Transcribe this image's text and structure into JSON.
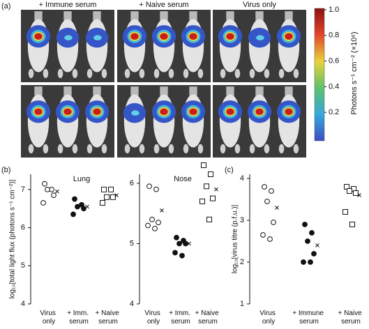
{
  "figure": {
    "panel_labels": [
      "(a)",
      "(b)",
      "(c)"
    ],
    "image_columns": [
      "+ Immune serum",
      "+ Naive serum",
      "Virus only"
    ]
  },
  "chart_data": [
    {
      "type": "colorbar",
      "label": "Photons s⁻¹ cm⁻² (×10⁶)",
      "ylim": [
        0,
        1
      ],
      "yticks": [
        0.2,
        0.4,
        0.6,
        0.8,
        {
          "value": 1,
          "label": "1.0"
        }
      ],
      "colors": [
        "#3b4fc4",
        "#36a8dc",
        "#5ec26b",
        "#e8d33a",
        "#e3462a",
        "#8c1111"
      ]
    },
    {
      "type": "dot",
      "title": "Lung",
      "ylabel": "log₁₀[total light flux (photons s⁻¹ cm⁻²)]",
      "categories": [
        "Virus only",
        "+ Imm. serum",
        "+ Naive serum"
      ],
      "markers": [
        "circle-open",
        "circle-filled",
        "square-open"
      ],
      "values": [
        [
          7.15,
          7.0,
          7.0,
          6.85,
          6.65
        ],
        [
          6.75,
          6.6,
          6.55,
          6.5,
          6.35
        ],
        [
          7.0,
          7.0,
          6.8,
          6.8,
          6.65
        ]
      ],
      "means": [
        6.95,
        6.55,
        6.85
      ],
      "ylim": [
        4,
        7.4
      ],
      "yticks": [
        4,
        5,
        6,
        7
      ]
    },
    {
      "type": "dot",
      "title": "Nose",
      "categories": [
        "Virus only",
        "+ Imm. serum",
        "+ Naive serum"
      ],
      "markers": [
        "circle-open",
        "circle-filled",
        "square-open"
      ],
      "values": [
        [
          5.95,
          5.9,
          5.4,
          5.35,
          5.3,
          5.25
        ],
        [
          5.1,
          5.05,
          5.0,
          5.0,
          4.85,
          4.8
        ],
        [
          6.3,
          6.15,
          5.95,
          5.75,
          5.7,
          5.4
        ]
      ],
      "means": [
        5.55,
        5.0,
        5.9
      ],
      "ylim": [
        4,
        6.15
      ],
      "yticks": [
        4,
        5,
        6
      ]
    },
    {
      "type": "dot",
      "ylabel": "log₁₀[virus titre (p.f.u.)]",
      "categories": [
        "Virus only",
        "+ Immune serum",
        "+ Naive serum"
      ],
      "markers": [
        "circle-open",
        "circle-filled",
        "square-open"
      ],
      "values": [
        [
          3.8,
          3.7,
          3.45,
          2.95,
          2.65,
          2.55
        ],
        [
          2.9,
          2.7,
          2.5,
          2.2,
          2.0,
          2.0
        ],
        [
          3.8,
          3.75,
          3.7,
          3.65,
          3.2,
          2.9
        ]
      ],
      "means": [
        3.3,
        2.4,
        3.6
      ],
      "ylim": [
        1,
        4.1
      ],
      "yticks": [
        1,
        2,
        3,
        4
      ]
    }
  ]
}
